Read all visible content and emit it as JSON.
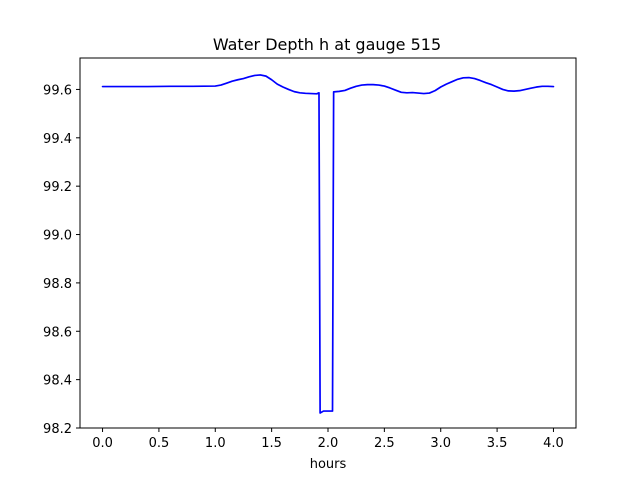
{
  "chart_data": {
    "type": "line",
    "title": "Water Depth h at gauge 515",
    "xlabel": "hours",
    "ylabel": "",
    "xlim": [
      -0.2,
      4.2
    ],
    "ylim": [
      98.2,
      99.73
    ],
    "xticks": [
      0.0,
      0.5,
      1.0,
      1.5,
      2.0,
      2.5,
      3.0,
      3.5,
      4.0
    ],
    "xtick_labels": [
      "0.0",
      "0.5",
      "1.0",
      "1.5",
      "2.0",
      "2.5",
      "3.0",
      "3.5",
      "4.0"
    ],
    "yticks": [
      98.2,
      98.4,
      98.6,
      98.8,
      99.0,
      99.2,
      99.4,
      99.6
    ],
    "ytick_labels": [
      "98.2",
      "98.4",
      "98.6",
      "98.8",
      "99.0",
      "99.2",
      "99.4",
      "99.6"
    ],
    "grid": false,
    "color": "#0000ff",
    "series": [
      {
        "x": [
          0.0,
          0.2,
          0.4,
          0.6,
          0.8,
          1.0,
          1.05,
          1.1,
          1.15,
          1.2,
          1.25,
          1.3,
          1.35,
          1.4,
          1.45,
          1.5,
          1.55,
          1.6,
          1.65,
          1.7,
          1.75,
          1.8,
          1.85,
          1.9,
          1.92,
          1.93,
          1.96,
          2.0,
          2.04,
          2.05,
          2.1,
          2.15,
          2.2,
          2.25,
          2.3,
          2.35,
          2.4,
          2.45,
          2.5,
          2.55,
          2.6,
          2.65,
          2.7,
          2.75,
          2.8,
          2.85,
          2.9,
          2.95,
          3.0,
          3.05,
          3.1,
          3.15,
          3.2,
          3.25,
          3.3,
          3.35,
          3.4,
          3.45,
          3.5,
          3.55,
          3.6,
          3.65,
          3.7,
          3.75,
          3.8,
          3.85,
          3.9,
          3.95,
          4.0
        ],
        "y": [
          99.612,
          99.612,
          99.612,
          99.613,
          99.613,
          99.614,
          99.618,
          99.626,
          99.634,
          99.64,
          99.645,
          99.652,
          99.658,
          99.66,
          99.655,
          99.64,
          99.622,
          99.61,
          99.6,
          99.591,
          99.586,
          99.584,
          99.583,
          99.582,
          99.586,
          98.262,
          98.27,
          98.27,
          98.27,
          99.59,
          99.592,
          99.596,
          99.605,
          99.613,
          99.618,
          99.62,
          99.62,
          99.618,
          99.614,
          99.606,
          99.597,
          99.588,
          99.586,
          99.587,
          99.585,
          99.583,
          99.585,
          99.595,
          99.61,
          99.622,
          99.632,
          99.642,
          99.648,
          99.649,
          99.645,
          99.637,
          99.628,
          99.62,
          99.61,
          99.6,
          99.594,
          99.593,
          99.595,
          99.6,
          99.605,
          99.61,
          99.613,
          99.613,
          99.612
        ]
      }
    ]
  }
}
